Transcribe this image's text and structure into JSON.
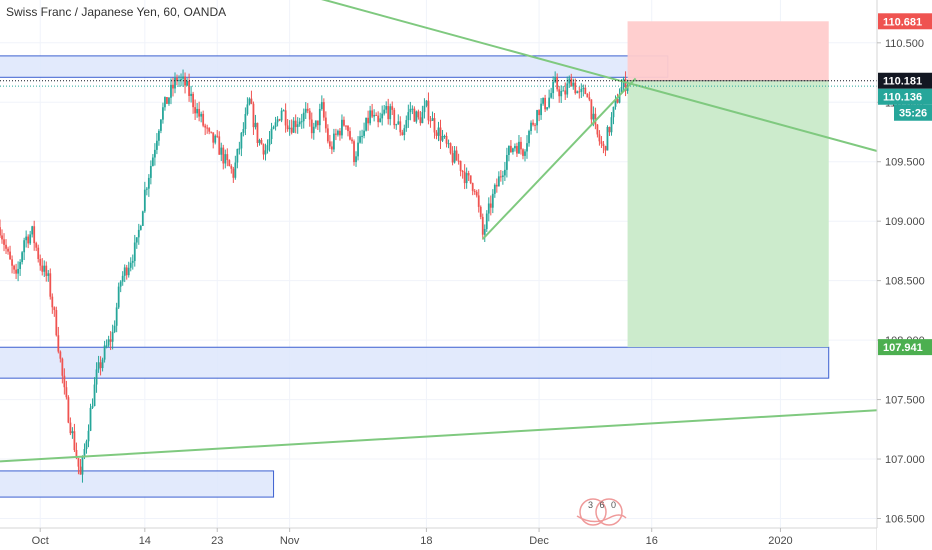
{
  "chart_data": {
    "type": "candlestick",
    "title": "Swiss Franc / Japanese Yen, 60, OANDA",
    "y_ticks": [
      "110.500",
      "110.000",
      "109.500",
      "109.000",
      "108.500",
      "108.000",
      "107.500",
      "107.000",
      "106.500"
    ],
    "y_tick_values": [
      110.5,
      110.0,
      109.5,
      109.0,
      108.5,
      108.0,
      107.5,
      107.0,
      106.5
    ],
    "x_ticks": [
      {
        "label": "Oct",
        "date": "2019-10-01"
      },
      {
        "label": "14",
        "date": "2019-10-14"
      },
      {
        "label": "23",
        "date": "2019-10-23"
      },
      {
        "label": "Nov",
        "date": "2019-11-01"
      },
      {
        "label": "18",
        "date": "2019-11-18"
      },
      {
        "label": "Dec",
        "date": "2019-12-02"
      },
      {
        "label": "16",
        "date": "2019-12-16"
      },
      {
        "label": "2020",
        "date": "2020-01-01"
      }
    ],
    "ylim": [
      106.42,
      110.86
    ],
    "xlim": [
      "2019-09-26",
      "2020-01-13"
    ],
    "price_labels": [
      {
        "value": 110.681,
        "label": "110.681",
        "color": "#ef5350"
      },
      {
        "value": 110.181,
        "label": "110.181",
        "color": "#131722"
      },
      {
        "value": 110.136,
        "label": "110.136",
        "color": "#26a69a"
      },
      {
        "value": 107.941,
        "label": "107.941",
        "color": "#4caf50"
      }
    ],
    "countdown": "35:26",
    "colors": {
      "up": "#26a69a",
      "down": "#ef5350",
      "trendline": "#7fc97f",
      "zone_fill": "#dde6fb",
      "zone_border": "#3b5fd0",
      "stop_fill": "#ffcccc",
      "target_fill": "#c9eac9"
    },
    "path_points": [
      [
        "2019-09-26",
        108.95
      ],
      [
        "2019-09-27",
        108.7
      ],
      [
        "2019-09-28",
        108.5
      ],
      [
        "2019-09-29",
        108.85
      ],
      [
        "2019-09-30",
        108.9
      ],
      [
        "2019-10-01",
        108.65
      ],
      [
        "2019-10-02",
        108.5
      ],
      [
        "2019-10-03",
        108.1
      ],
      [
        "2019-10-04",
        107.55
      ],
      [
        "2019-10-05",
        107.2
      ],
      [
        "2019-10-06",
        106.85
      ],
      [
        "2019-10-07",
        107.3
      ],
      [
        "2019-10-08",
        107.7
      ],
      [
        "2019-10-09",
        107.9
      ],
      [
        "2019-10-10",
        108.05
      ],
      [
        "2019-10-11",
        108.5
      ],
      [
        "2019-10-12",
        108.65
      ],
      [
        "2019-10-13",
        108.8
      ],
      [
        "2019-10-14",
        109.25
      ],
      [
        "2019-10-15",
        109.55
      ],
      [
        "2019-10-16",
        109.9
      ],
      [
        "2019-10-17",
        110.05
      ],
      [
        "2019-10-18",
        110.2
      ],
      [
        "2019-10-19",
        110.15
      ],
      [
        "2019-10-20",
        110.0
      ],
      [
        "2019-10-21",
        109.85
      ],
      [
        "2019-10-22",
        109.7
      ],
      [
        "2019-10-23",
        109.65
      ],
      [
        "2019-10-24",
        109.5
      ],
      [
        "2019-10-25",
        109.4
      ],
      [
        "2019-10-26",
        109.7
      ],
      [
        "2019-10-27",
        110.0
      ],
      [
        "2019-10-28",
        109.7
      ],
      [
        "2019-10-29",
        109.6
      ],
      [
        "2019-10-30",
        109.75
      ],
      [
        "2019-10-31",
        109.95
      ],
      [
        "2019-11-01",
        109.8
      ],
      [
        "2019-11-02",
        109.85
      ],
      [
        "2019-11-03",
        109.9
      ],
      [
        "2019-11-04",
        109.75
      ],
      [
        "2019-11-05",
        109.95
      ],
      [
        "2019-11-06",
        109.6
      ],
      [
        "2019-11-07",
        109.75
      ],
      [
        "2019-11-08",
        109.85
      ],
      [
        "2019-11-09",
        109.55
      ],
      [
        "2019-11-10",
        109.7
      ],
      [
        "2019-11-11",
        109.9
      ],
      [
        "2019-11-12",
        109.8
      ],
      [
        "2019-11-13",
        109.95
      ],
      [
        "2019-11-14",
        109.85
      ],
      [
        "2019-11-15",
        109.75
      ],
      [
        "2019-11-16",
        109.95
      ],
      [
        "2019-11-17",
        109.85
      ],
      [
        "2019-11-18",
        109.95
      ],
      [
        "2019-11-19",
        109.8
      ],
      [
        "2019-11-20",
        109.7
      ],
      [
        "2019-11-21",
        109.55
      ],
      [
        "2019-11-22",
        109.5
      ],
      [
        "2019-11-23",
        109.35
      ],
      [
        "2019-11-24",
        109.3
      ],
      [
        "2019-11-25",
        108.88
      ],
      [
        "2019-11-26",
        109.15
      ],
      [
        "2019-11-27",
        109.35
      ],
      [
        "2019-11-28",
        109.55
      ],
      [
        "2019-11-29",
        109.65
      ],
      [
        "2019-11-30",
        109.6
      ],
      [
        "2019-12-01",
        109.8
      ],
      [
        "2019-12-02",
        109.95
      ],
      [
        "2019-12-03",
        110.0
      ],
      [
        "2019-12-04",
        110.15
      ],
      [
        "2019-12-05",
        110.05
      ],
      [
        "2019-12-06",
        110.2
      ],
      [
        "2019-12-07",
        110.05
      ],
      [
        "2019-12-08",
        110.1
      ],
      [
        "2019-12-09",
        109.75
      ],
      [
        "2019-12-10",
        109.6
      ],
      [
        "2019-12-11",
        109.85
      ],
      [
        "2019-12-12",
        110.1
      ],
      [
        "2019-12-13",
        110.181
      ]
    ],
    "zones": [
      {
        "x0": "2019-09-26",
        "x1": "2019-12-18",
        "y0": 110.21,
        "y1": 110.39,
        "kind": "zone"
      },
      {
        "x0": "2019-09-26",
        "x1": "2020-01-07",
        "y0": 107.68,
        "y1": 107.94,
        "kind": "zone"
      },
      {
        "x0": "2019-09-26",
        "x1": "2019-10-30",
        "y0": 106.68,
        "y1": 106.9,
        "kind": "zone"
      }
    ],
    "position": {
      "x0": "2019-12-13",
      "x1": "2020-01-07",
      "entry": 110.181,
      "stop": 110.681,
      "target": 107.941
    },
    "trendlines": [
      {
        "x0": "2019-10-18",
        "y0": 111.2,
        "x1": "2020-01-13",
        "y1": 109.59
      },
      {
        "x0": "2019-09-26",
        "y0": 106.98,
        "x1": "2020-01-13",
        "y1": 107.41
      },
      {
        "x0": "2019-11-25",
        "y0": 108.85,
        "x1": "2019-12-14",
        "y1": 110.2
      }
    ],
    "grid": true,
    "legend": "none"
  },
  "watermark": {
    "text": "3 6 0"
  }
}
